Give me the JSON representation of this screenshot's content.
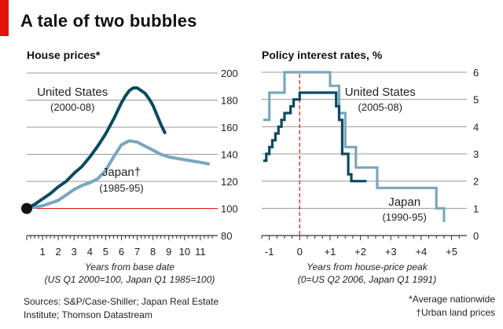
{
  "title": "A tale of two bubbles",
  "footer": {
    "sources_lines": [
      "Sources: S&P/Case-Shiller; Japan Real Estate",
      "Institute; Thomson Datastream"
    ],
    "notes": [
      "*Average nationwide",
      "†Urban land prices"
    ]
  },
  "colors": {
    "us": "#0b4a63",
    "japan": "#79a7bd",
    "accent": "#e3120b",
    "grid": "#999999"
  },
  "chart_data": [
    {
      "type": "line",
      "title": "House prices*",
      "xlabel_lines": [
        "Years from base date",
        "(US Q1 2000=100, Japan Q1 1985=100)"
      ],
      "xlim": [
        0,
        11.9
      ],
      "ylim": [
        80,
        200
      ],
      "x_ticks": [
        1,
        2,
        3,
        4,
        5,
        6,
        7,
        8,
        9,
        10,
        11
      ],
      "y_ticks": [
        80,
        100,
        120,
        140,
        160,
        180,
        200
      ],
      "reference_line_y": 100,
      "series": [
        {
          "name": "United States",
          "label_lines": [
            "United States",
            "(2000-08)"
          ],
          "x": [
            0,
            0.5,
            1,
            1.5,
            2,
            2.5,
            3,
            3.5,
            4,
            4.5,
            5,
            5.5,
            6,
            6.25,
            6.5,
            6.75,
            7,
            7.25,
            7.5,
            7.75,
            8,
            8.25,
            8.5,
            8.75
          ],
          "y": [
            100,
            103,
            107,
            111,
            116,
            120,
            126,
            131,
            138,
            146,
            155,
            166,
            178,
            183,
            187,
            189,
            189,
            187,
            185,
            181,
            176,
            169,
            162,
            156
          ]
        },
        {
          "name": "Japan",
          "label_lines": [
            "Japan†",
            "(1985-95)"
          ],
          "x": [
            0,
            1,
            2,
            2.5,
            3,
            3.5,
            4,
            4.5,
            5,
            5.5,
            6,
            6.5,
            7,
            7.5,
            8,
            8.5,
            9,
            9.5,
            10,
            10.5,
            11,
            11.5
          ],
          "y": [
            100,
            102,
            106,
            110,
            114,
            117,
            119,
            122,
            128,
            138,
            147,
            150,
            149,
            146,
            143,
            140,
            138,
            137,
            136,
            135,
            134,
            133
          ]
        }
      ]
    },
    {
      "type": "line",
      "title": "Policy interest rates, %",
      "xlabel_lines": [
        "Years from house-price peak",
        "(0=US Q2 2006, Japan Q1 1991)"
      ],
      "xlim": [
        -1.25,
        5.4
      ],
      "ylim": [
        0,
        6
      ],
      "x_ticks": [
        -1,
        0,
        1,
        2,
        3,
        4,
        5
      ],
      "x_tick_labels": [
        "-1",
        "0",
        "+1",
        "+2",
        "+3",
        "+4",
        "+5"
      ],
      "y_ticks": [
        0,
        1,
        2,
        3,
        4,
        5,
        6
      ],
      "reference_line_x": 0,
      "series": [
        {
          "name": "United States",
          "label_lines": [
            "United States",
            "(2005-08)"
          ],
          "step": true,
          "x": [
            -1.2,
            -1.1,
            -1.0,
            -0.9,
            -0.8,
            -0.7,
            -0.6,
            -0.5,
            -0.4,
            -0.3,
            -0.2,
            -0.1,
            0,
            0.1,
            1.2,
            1.3,
            1.4,
            1.5,
            1.6,
            1.7,
            1.8,
            1.9,
            2.2
          ],
          "y": [
            2.75,
            3.0,
            3.25,
            3.5,
            3.75,
            4.0,
            4.25,
            4.5,
            4.5,
            4.75,
            5.0,
            5.0,
            5.25,
            5.25,
            4.75,
            4.25,
            3.0,
            3.0,
            2.25,
            2.0,
            2.0,
            2.0,
            2.0
          ]
        },
        {
          "name": "Japan",
          "label_lines": [
            "Japan",
            "(1990-95)"
          ],
          "step": true,
          "x": [
            -1.2,
            -1.0,
            -0.75,
            -0.5,
            0.5,
            1.0,
            1.3,
            1.5,
            1.7,
            1.85,
            2.0,
            2.55,
            4.2,
            4.5,
            4.75
          ],
          "y": [
            4.25,
            5.25,
            5.25,
            6.0,
            6.0,
            5.5,
            4.5,
            3.25,
            3.25,
            2.5,
            2.5,
            1.75,
            1.75,
            1.0,
            0.5
          ]
        }
      ]
    }
  ]
}
